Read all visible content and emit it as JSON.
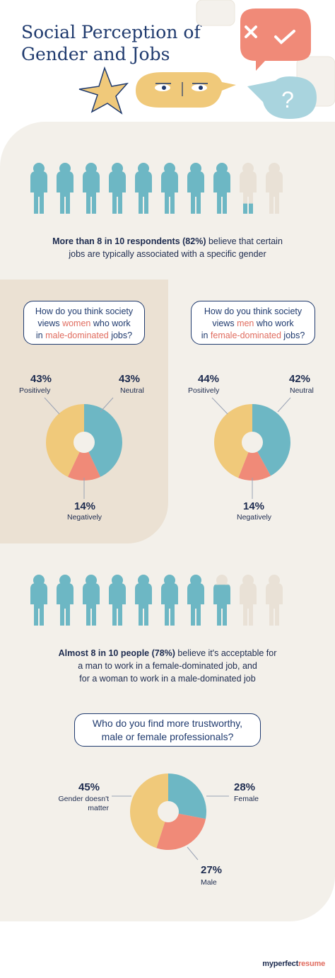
{
  "title": "Social Perception of Gender and Jobs",
  "section1": {
    "caption_bold": "More than 8 in 10 respondents (82%)",
    "caption_rest1": " believe that certain",
    "caption_rest2": "jobs are typically associated with a specific gender"
  },
  "q_women": {
    "l1": "How do you think society",
    "l2a": "views ",
    "l2b": "women",
    "l2c": " who work",
    "l3a": "in ",
    "l3b": "male-dominated",
    "l3c": " jobs?"
  },
  "q_men": {
    "l1": "How do you think society",
    "l2a": "views ",
    "l2b": "men",
    "l2c": " who work",
    "l3a": "in ",
    "l3b": "female-dominated",
    "l3c": " jobs?"
  },
  "section2": {
    "line1_bold": "Almost 8 in 10 people (78%)",
    "line1_rest": " believe it's acceptable for",
    "line2": "a man to work in a female-dominated job, and",
    "line3": "for a woman to work in a male-dominated job"
  },
  "q_trust": {
    "l1": "Who do you find more trustworthy,",
    "l2": "male or female professionals?"
  },
  "brand": {
    "a": "myperfect",
    "b": "resume"
  },
  "colors": {
    "teal": "#6db7c4",
    "yellow": "#f0c97a",
    "coral": "#f08a78",
    "empty": "#e9e1d6",
    "navy": "#1f3a6e"
  },
  "chart_data": [
    {
      "type": "pictogram",
      "total_icons": 10,
      "filled_value": 82,
      "unit": "%"
    },
    {
      "type": "pie",
      "title": "How do you think society views women who work in male-dominated jobs?",
      "labels": [
        "Neutral",
        "Negatively",
        "Positively"
      ],
      "values": [
        43,
        14,
        43
      ],
      "pct_text": [
        "43%",
        "14%",
        "43%"
      ],
      "colors": [
        "#6db7c4",
        "#f08a78",
        "#f0c97a"
      ]
    },
    {
      "type": "pie",
      "title": "How do you think society views men who work in female-dominated jobs?",
      "labels": [
        "Neutral",
        "Negatively",
        "Positively"
      ],
      "values": [
        42,
        14,
        44
      ],
      "pct_text": [
        "42%",
        "14%",
        "44%"
      ],
      "colors": [
        "#6db7c4",
        "#f08a78",
        "#f0c97a"
      ]
    },
    {
      "type": "pictogram",
      "total_icons": 10,
      "filled_value": 78,
      "unit": "%"
    },
    {
      "type": "pie",
      "title": "Who do you find more trustworthy, male or female professionals?",
      "labels": [
        "Female",
        "Male",
        "Gender doesn't matter"
      ],
      "values": [
        28,
        27,
        45
      ],
      "pct_text": [
        "28%",
        "27%",
        "45%"
      ],
      "colors": [
        "#6db7c4",
        "#f08a78",
        "#f0c97a"
      ]
    }
  ]
}
